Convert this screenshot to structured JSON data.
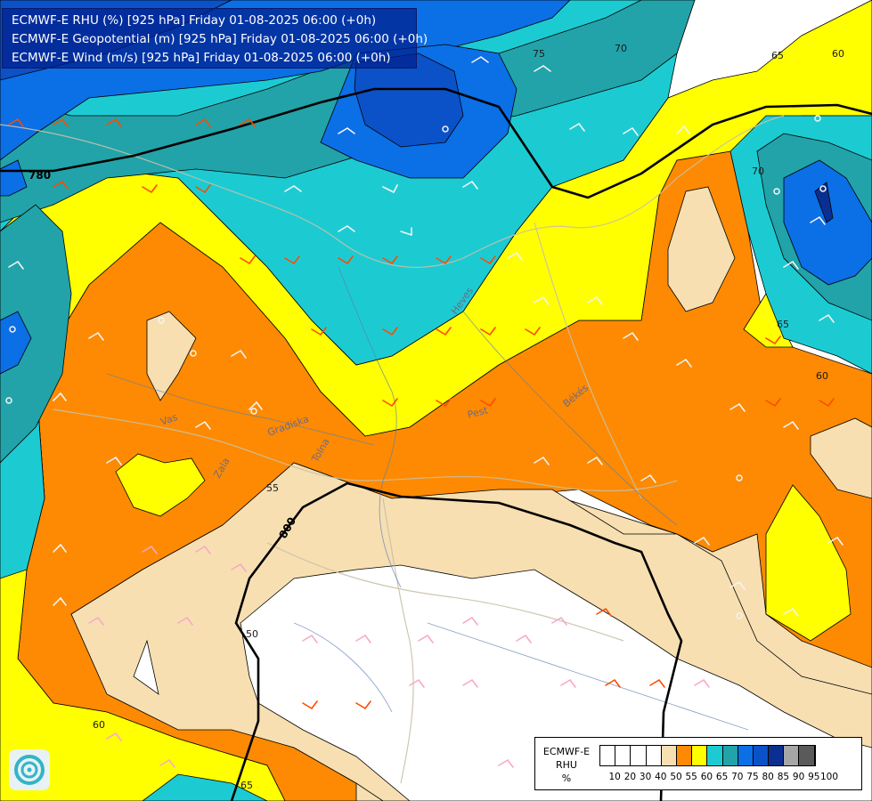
{
  "header": {
    "line1": "ECMWF-E RHU (%) [925 hPa] Friday 01-08-2025 06:00 (+0h)",
    "line2": "ECMWF-E Geopotential (m) [925 hPa] Friday 01-08-2025 06:00 (+0h)",
    "line3": "ECMWF-E Wind (m/s) [925 hPa] Friday 01-08-2025 06:00 (+0h)"
  },
  "legend": {
    "title_line1": "ECMWF-E",
    "title_line2": "RHU",
    "title_line3": "%",
    "ticks": [
      "10",
      "20",
      "30",
      "40",
      "50",
      "55",
      "60",
      "65",
      "70",
      "75",
      "80",
      "85",
      "90",
      "95",
      "100"
    ],
    "colors": [
      "#ffffff",
      "#ffffff",
      "#ffffff",
      "#ffffff",
      "#f7dfb2",
      "#fd8a02",
      "#ffff00",
      "#1ccbd2",
      "#21a3a9",
      "#0b6fe6",
      "#0b52c9",
      "#0b2f91",
      "#a6a6a6",
      "#5a5a5a"
    ]
  },
  "contour_labels": {
    "rhu_55": "55",
    "rhu_60_a": "60",
    "rhu_60_b": "60",
    "rhu_60_c": "60",
    "rhu_65_a": "65",
    "rhu_65_b": "65",
    "rhu_65_c": "65",
    "rhu_70_a": "70",
    "rhu_70_b": "70",
    "rhu_75": "75",
    "rhu_50": "50",
    "geo_780": "780",
    "geo_800": "800"
  },
  "places": {
    "heves": "Heves",
    "pest": "Pest",
    "bekes": "Békés",
    "vas": "Vas",
    "zala": "Zala",
    "gornjesavska": "Gradiska",
    "tolna": "Tolna"
  },
  "colors": {
    "rhu_50": "#f7dfb2",
    "rhu_55": "#fd8a02",
    "rhu_60": "#ffff00",
    "rhu_65": "#1ccbd2",
    "rhu_70": "#21a3a9",
    "rhu_75": "#0b6fe6",
    "rhu_80": "#0b52c9",
    "rhu_85": "#0b2f91"
  }
}
